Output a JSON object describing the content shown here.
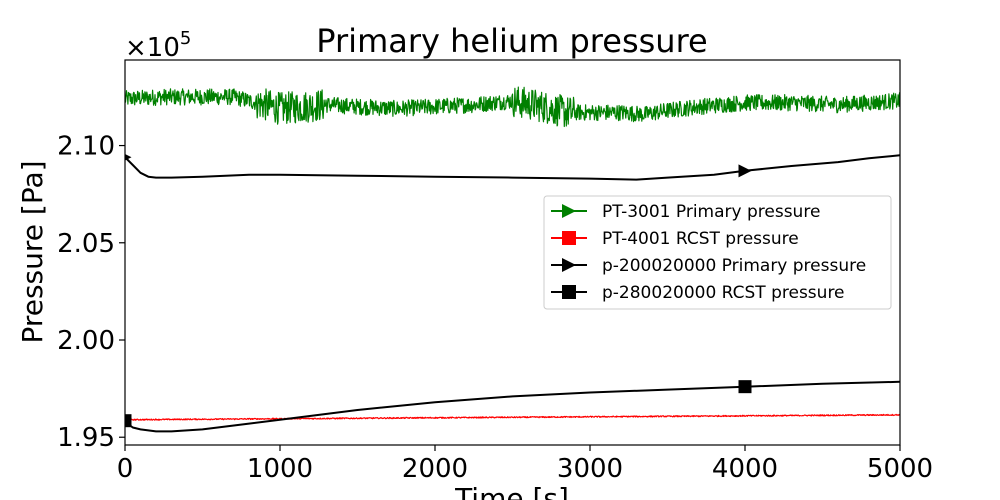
{
  "chart_data": {
    "type": "line",
    "title": "Primary helium pressure",
    "xlabel": "Time [s]",
    "ylabel": "Pressure [Pa]",
    "y_multiplier_label": "×10",
    "y_multiplier_exponent": "5",
    "xlim": [
      0,
      5000
    ],
    "ylim": [
      194600,
      214400
    ],
    "x_ticks": [
      0,
      1000,
      2000,
      3000,
      4000,
      5000
    ],
    "x_tick_labels": [
      "0",
      "1000",
      "2000",
      "3000",
      "4000",
      "5000"
    ],
    "y_ticks": [
      195000,
      200000,
      205000,
      210000
    ],
    "y_tick_labels": [
      "1.95",
      "2.00",
      "2.05",
      "2.10"
    ],
    "grid": false,
    "legend_position": "center-right",
    "series": [
      {
        "name": "PT-3001 Primary pressure",
        "color": "#008000",
        "marker": "triangle-right",
        "noisy": true,
        "x": [
          0,
          250,
          500,
          700,
          850,
          1000,
          1150,
          1300,
          1500,
          1750,
          2000,
          2250,
          2500,
          2700,
          2850,
          3000,
          3200,
          3350,
          3500,
          3700,
          4000,
          4300,
          4600,
          4800,
          5000
        ],
        "y": [
          212400,
          212500,
          212500,
          212500,
          212200,
          211900,
          212000,
          212100,
          212000,
          211900,
          212000,
          212100,
          212300,
          212000,
          211700,
          211700,
          211700,
          211600,
          211800,
          212000,
          212200,
          212200,
          212100,
          212200,
          212300
        ],
        "markers_x": [],
        "markers_y": []
      },
      {
        "name": "PT-4001 RCST pressure",
        "color": "#ff0000",
        "marker": "square",
        "noisy": true,
        "x": [
          0,
          1000,
          2000,
          3000,
          4000,
          5000
        ],
        "y": [
          195900,
          195950,
          196000,
          196050,
          196100,
          196150
        ],
        "markers_x": [],
        "markers_y": []
      },
      {
        "name": "p-200020000 Primary pressure",
        "color": "#000000",
        "marker": "triangle-right",
        "noisy": false,
        "x": [
          0,
          50,
          100,
          150,
          200,
          300,
          500,
          800,
          1000,
          1500,
          2000,
          2500,
          3000,
          3300,
          3500,
          3800,
          4000,
          4300,
          4600,
          4800,
          5000
        ],
        "y": [
          209400,
          209000,
          208600,
          208400,
          208350,
          208350,
          208400,
          208500,
          208500,
          208450,
          208400,
          208350,
          208300,
          208250,
          208350,
          208500,
          208700,
          208950,
          209150,
          209350,
          209500
        ],
        "markers_x": [
          0,
          4000
        ],
        "markers_y": [
          209400,
          208700
        ]
      },
      {
        "name": "p-280020000 RCST pressure",
        "color": "#000000",
        "marker": "square",
        "noisy": false,
        "x": [
          0,
          50,
          100,
          200,
          300,
          500,
          800,
          1000,
          1500,
          2000,
          2500,
          3000,
          3500,
          4000,
          4500,
          5000
        ],
        "y": [
          195800,
          195500,
          195400,
          195300,
          195300,
          195400,
          195700,
          195900,
          196400,
          196800,
          197100,
          197300,
          197450,
          197600,
          197750,
          197850
        ],
        "markers_x": [
          0,
          4000
        ],
        "markers_y": [
          195850,
          197600
        ]
      }
    ]
  }
}
